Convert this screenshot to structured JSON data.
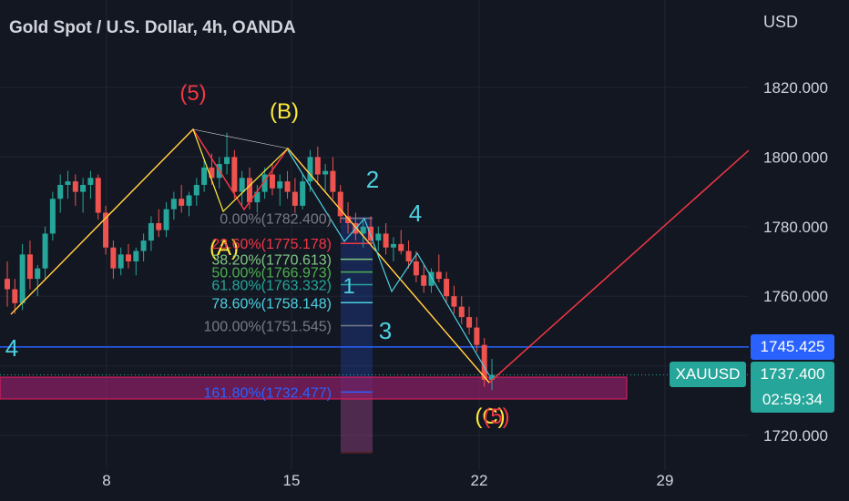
{
  "header": {
    "symbol_title": "Gold Spot / U.S. Dollar, 4h, OANDA",
    "currency": "USD"
  },
  "price_axis": {
    "ticks": [
      "1820.000",
      "1800.000",
      "1780.000",
      "1760.000",
      "1720.000"
    ]
  },
  "time_axis": {
    "ticks": [
      "8",
      "15",
      "22",
      "29"
    ]
  },
  "tags": {
    "level_price": "1745.425",
    "symbol": "XAUUSD",
    "last_price": "1737.400",
    "countdown": "02:59:34"
  },
  "colors": {
    "background": "#131722",
    "up_candle": "#26a69a",
    "down_candle": "#ef5350",
    "level_line": "#2962ff",
    "pattern_red": "#f23645",
    "pattern_yellow": "#ffeb3b",
    "pattern_cyan": "#4dd0e1",
    "zone": "#8e1f66"
  },
  "wave_labels": [
    "(5)",
    "(B)",
    "(A)",
    "2",
    "4",
    "1",
    "3",
    "4",
    "(C)",
    "(5)"
  ],
  "fib_levels": [
    {
      "label": "0.00%(1782.400)",
      "color": "#787b86"
    },
    {
      "label": "23.60%(1775.178)",
      "color": "#f23645"
    },
    {
      "label": "38.20%(1770.613)",
      "color": "#81c784"
    },
    {
      "label": "50.00%(1766.973)",
      "color": "#4caf50"
    },
    {
      "label": "61.80%(1763.332)",
      "color": "#26a69a"
    },
    {
      "label": "78.60%(1758.148)",
      "color": "#4dd0e1"
    },
    {
      "label": "100.00%(1751.545)",
      "color": "#787b86"
    },
    {
      "label": "161.80%(1732.477)",
      "color": "#2962ff"
    }
  ],
  "chart_data": {
    "type": "candlestick",
    "title": "Gold Spot / U.S. Dollar, 4h, OANDA",
    "ylabel": "USD",
    "ylim": [
      1715,
      1830
    ],
    "x_ticks": [
      "8",
      "15",
      "22",
      "29"
    ],
    "candles": [
      [
        1765,
        1770,
        1757,
        1762
      ],
      [
        1762,
        1765,
        1755,
        1758
      ],
      [
        1758,
        1775,
        1756,
        1772
      ],
      [
        1772,
        1776,
        1762,
        1765
      ],
      [
        1765,
        1769,
        1760,
        1768
      ],
      [
        1768,
        1780,
        1765,
        1778
      ],
      [
        1778,
        1790,
        1776,
        1788
      ],
      [
        1788,
        1795,
        1784,
        1792
      ],
      [
        1792,
        1796,
        1788,
        1793
      ],
      [
        1793,
        1795,
        1786,
        1790
      ],
      [
        1790,
        1794,
        1784,
        1792
      ],
      [
        1792,
        1796,
        1788,
        1794
      ],
      [
        1794,
        1795,
        1782,
        1784
      ],
      [
        1784,
        1786,
        1772,
        1774
      ],
      [
        1774,
        1776,
        1765,
        1768
      ],
      [
        1768,
        1774,
        1766,
        1772
      ],
      [
        1772,
        1775,
        1768,
        1770
      ],
      [
        1770,
        1774,
        1766,
        1773
      ],
      [
        1773,
        1778,
        1770,
        1776
      ],
      [
        1776,
        1783,
        1773,
        1781
      ],
      [
        1781,
        1785,
        1777,
        1779
      ],
      [
        1779,
        1787,
        1777,
        1785
      ],
      [
        1785,
        1790,
        1782,
        1788
      ],
      [
        1788,
        1792,
        1784,
        1786
      ],
      [
        1786,
        1790,
        1783,
        1789
      ],
      [
        1789,
        1794,
        1786,
        1792
      ],
      [
        1792,
        1799,
        1790,
        1797
      ],
      [
        1797,
        1801,
        1792,
        1794
      ],
      [
        1794,
        1800,
        1791,
        1798
      ],
      [
        1798,
        1807,
        1795,
        1800
      ],
      [
        1800,
        1802,
        1788,
        1790
      ],
      [
        1790,
        1796,
        1786,
        1794
      ],
      [
        1794,
        1797,
        1785,
        1787
      ],
      [
        1787,
        1792,
        1784,
        1790
      ],
      [
        1790,
        1797,
        1788,
        1795
      ],
      [
        1795,
        1798,
        1789,
        1791
      ],
      [
        1791,
        1795,
        1786,
        1793
      ],
      [
        1793,
        1796,
        1788,
        1790
      ],
      [
        1790,
        1794,
        1784,
        1786
      ],
      [
        1786,
        1795,
        1785,
        1793
      ],
      [
        1793,
        1802,
        1790,
        1800
      ],
      [
        1800,
        1803,
        1792,
        1795
      ],
      [
        1795,
        1798,
        1790,
        1796
      ],
      [
        1796,
        1800,
        1788,
        1790
      ],
      [
        1790,
        1792,
        1781,
        1783
      ],
      [
        1783,
        1787,
        1778,
        1781
      ],
      [
        1781,
        1784,
        1776,
        1778
      ],
      [
        1778,
        1782,
        1774,
        1780
      ],
      [
        1780,
        1783,
        1775,
        1776
      ],
      [
        1776,
        1780,
        1773,
        1778
      ],
      [
        1778,
        1781,
        1772,
        1774
      ],
      [
        1774,
        1777,
        1770,
        1775
      ],
      [
        1775,
        1779,
        1772,
        1773
      ],
      [
        1773,
        1776,
        1768,
        1770
      ],
      [
        1770,
        1773,
        1764,
        1766
      ],
      [
        1766,
        1769,
        1761,
        1763
      ],
      [
        1763,
        1768,
        1761,
        1767
      ],
      [
        1767,
        1772,
        1764,
        1765
      ],
      [
        1765,
        1767,
        1758,
        1760
      ],
      [
        1760,
        1763,
        1755,
        1757
      ],
      [
        1757,
        1760,
        1752,
        1754
      ],
      [
        1754,
        1757,
        1749,
        1751
      ],
      [
        1751,
        1754,
        1744,
        1746
      ],
      [
        1746,
        1748,
        1734,
        1736
      ],
      [
        1736,
        1742,
        1733,
        1737.4
      ]
    ],
    "level_lines": [
      1745.425
    ],
    "fib_levels": [
      1782.4,
      1775.178,
      1770.613,
      1766.973,
      1763.332,
      1758.148,
      1751.545,
      1732.477
    ]
  }
}
